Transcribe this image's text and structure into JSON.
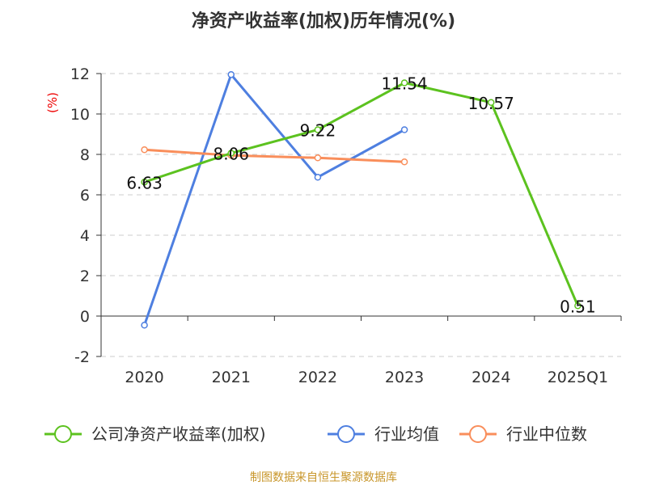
{
  "chart_data": {
    "type": "line",
    "title": "净资产收益率(加权)历年情况(%)",
    "ylabel": "(%)",
    "categories": [
      "2020",
      "2021",
      "2022",
      "2023",
      "2024",
      "2025Q1"
    ],
    "ylim": [
      -2,
      12
    ],
    "yticks": [
      -2,
      0,
      2,
      4,
      6,
      8,
      10,
      12
    ],
    "grid": true,
    "legend_position": "bottom",
    "series": [
      {
        "name": "公司净资产收益率(加权)",
        "color": "#5cc21f",
        "values": [
          6.63,
          8.06,
          9.22,
          11.54,
          10.57,
          0.51
        ],
        "labels": [
          "6.63",
          "8.06",
          "9.22",
          "11.54",
          "10.57",
          "0.51"
        ]
      },
      {
        "name": "行业均值",
        "color": "#4e7fe0",
        "values": [
          -0.45,
          11.95,
          6.87,
          9.22,
          null,
          null
        ]
      },
      {
        "name": "行业中位数",
        "color": "#f98e5b",
        "values": [
          8.23,
          7.95,
          7.83,
          7.63,
          null,
          null
        ]
      }
    ]
  },
  "source": "制图数据来自恒生聚源数据库"
}
